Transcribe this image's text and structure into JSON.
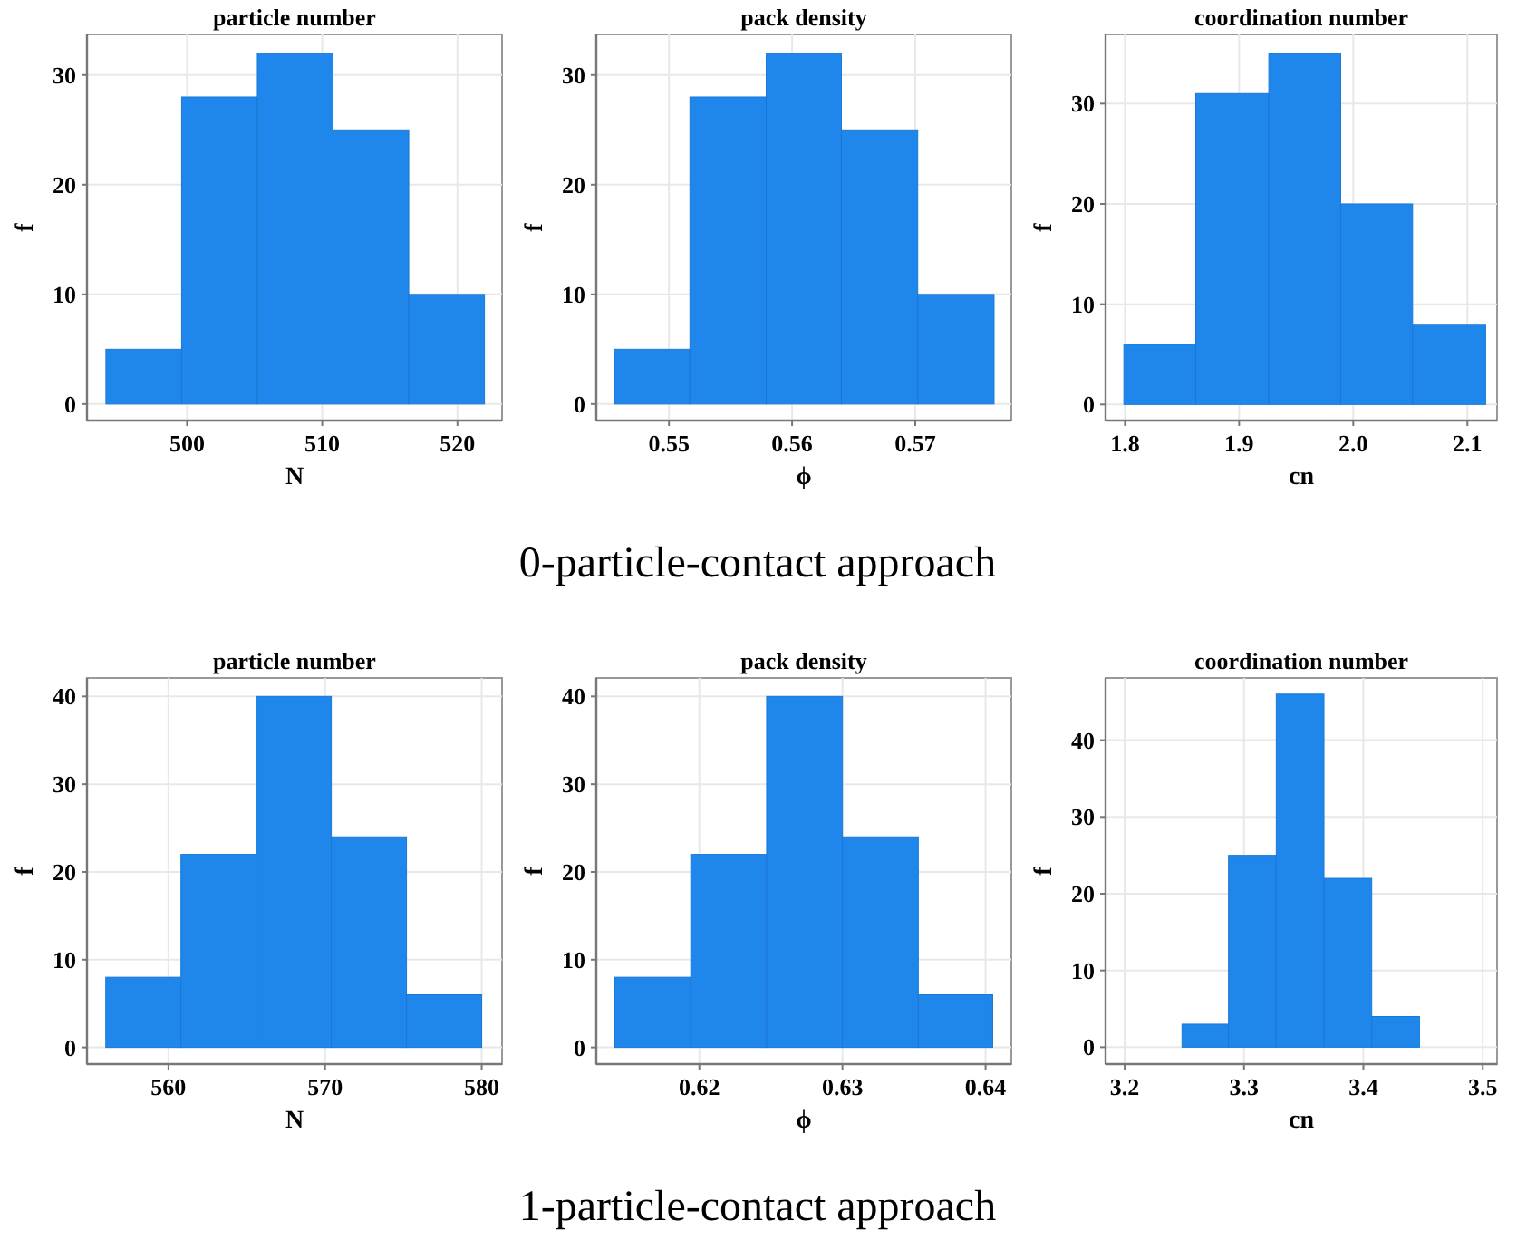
{
  "chart_data": [
    {
      "type": "histogram",
      "title": "particle number",
      "xlabel": "N",
      "ylabel": "f",
      "bins": [
        494,
        499.6,
        505.2,
        510.8,
        516.4,
        522
      ],
      "values": [
        5,
        28,
        32,
        25,
        10
      ],
      "color": "#1f87ec",
      "xlim": [
        492.6,
        523.3
      ],
      "xticks": [
        500,
        510,
        520
      ],
      "ylim": [
        -1.5,
        33.7
      ],
      "yticks": [
        0,
        10,
        20,
        30
      ],
      "grid": true
    },
    {
      "type": "histogram",
      "title": "pack density",
      "xlabel": "ϕ",
      "ylabel": "f",
      "bins": [
        0.5456,
        0.5517,
        0.5579,
        0.564,
        0.5702,
        0.5764
      ],
      "values": [
        5,
        28,
        32,
        25,
        10
      ],
      "color": "#1f87ec",
      "xlim": [
        0.5441,
        0.5778
      ],
      "xticks": [
        0.55,
        0.56,
        0.57
      ],
      "ylim": [
        -1.5,
        33.7
      ],
      "yticks": [
        0,
        10,
        20,
        30
      ],
      "grid": true,
      "annotations": [
        "0-particle-contact approach"
      ]
    },
    {
      "type": "histogram",
      "title": "coordination number",
      "xlabel": "cn",
      "ylabel": "f",
      "bins": [
        1.799,
        1.862,
        1.926,
        1.989,
        2.052,
        2.116
      ],
      "values": [
        6,
        31,
        35,
        20,
        8
      ],
      "color": "#1f87ec",
      "xlim": [
        1.783,
        2.126
      ],
      "xticks": [
        1.8,
        1.9,
        {
          "value": 2,
          "label": "2.0"
        },
        2.1
      ],
      "ylim": [
        -1.6,
        36.9
      ],
      "yticks": [
        0,
        10,
        20,
        30
      ],
      "grid": true
    },
    {
      "type": "histogram",
      "title": "particle number",
      "xlabel": "N",
      "ylabel": "f",
      "bins": [
        556,
        560.8,
        565.6,
        570.4,
        575.2,
        580
      ],
      "values": [
        8,
        22,
        40,
        24,
        6
      ],
      "color": "#1f87ec",
      "xlim": [
        554.8,
        581.3
      ],
      "xticks": [
        560,
        570,
        580
      ],
      "ylim": [
        -1.9,
        42.1
      ],
      "yticks": [
        0,
        10,
        20,
        30,
        40
      ],
      "grid": true
    },
    {
      "type": "histogram",
      "title": "pack density",
      "xlabel": "ϕ",
      "ylabel": "f",
      "bins": [
        0.6141,
        0.6194,
        0.6247,
        0.63,
        0.6353,
        0.6405
      ],
      "values": [
        8,
        22,
        40,
        24,
        6
      ],
      "color": "#1f87ec",
      "xlim": [
        0.6128,
        0.6418
      ],
      "xticks": [
        0.62,
        0.63,
        0.64
      ],
      "ylim": [
        -1.9,
        42.1
      ],
      "yticks": [
        0,
        10,
        20,
        30,
        40
      ],
      "grid": true,
      "annotations": [
        "1-particle-contact approach"
      ]
    },
    {
      "type": "histogram",
      "title": "coordination number",
      "xlabel": "cn",
      "ylabel": "f",
      "bins": [
        3.248,
        3.287,
        3.327,
        3.367,
        3.407,
        3.447
      ],
      "values": [
        3,
        25,
        46,
        22,
        4
      ],
      "color": "#1f87ec",
      "xlim": [
        3.184,
        3.512
      ],
      "xticks": [
        3.2,
        3.3,
        3.4,
        3.5
      ],
      "ylim": [
        -2.2,
        48.1
      ],
      "yticks": [
        0,
        10,
        20,
        30,
        40
      ],
      "grid": true
    }
  ]
}
